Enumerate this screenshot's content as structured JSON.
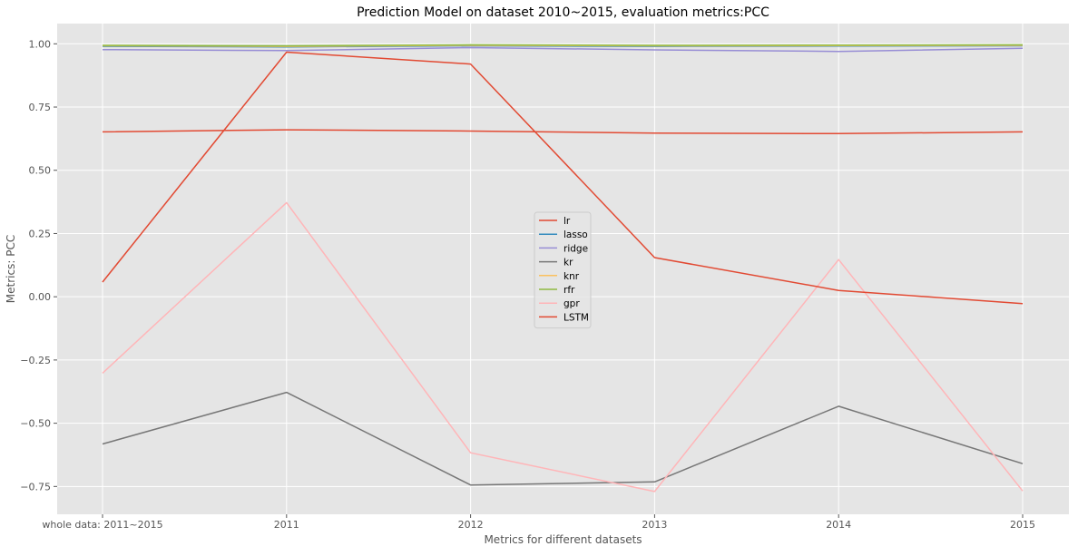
{
  "chart_data": {
    "type": "line",
    "title": "Prediction Model on dataset 2010~2015, evaluation metrics:PCC",
    "xlabel": "Metrics for different datasets",
    "ylabel": "Metrics: PCC",
    "categories": [
      "whole data: 2011~2015",
      "2011",
      "2012",
      "2013",
      "2014",
      "2015"
    ],
    "ylim": [
      -0.86,
      1.08
    ],
    "yticks": [
      -0.75,
      -0.5,
      -0.25,
      0.0,
      0.25,
      0.5,
      0.75,
      1.0
    ],
    "ytick_labels": [
      "−0.75",
      "−0.50",
      "−0.25",
      "0.00",
      "0.25",
      "0.50",
      "0.75",
      "1.00"
    ],
    "grid": true,
    "legend_position": "center",
    "background": "#e5e5e5",
    "series": [
      {
        "name": "lr",
        "color": "#e24a33",
        "values": [
          0.652,
          0.66,
          0.655,
          0.647,
          0.645,
          0.652
        ]
      },
      {
        "name": "lasso",
        "color": "#348abd",
        "values": [
          0.99,
          0.988,
          0.992,
          0.99,
          0.991,
          0.992
        ]
      },
      {
        "name": "ridge",
        "color": "#988ed5",
        "values": [
          0.977,
          0.973,
          0.985,
          0.976,
          0.97,
          0.982
        ]
      },
      {
        "name": "kr",
        "color": "#777777",
        "values": [
          -0.582,
          -0.378,
          -0.744,
          -0.732,
          -0.433,
          -0.66
        ]
      },
      {
        "name": "knr",
        "color": "#fbc15e",
        "values": [
          0.992,
          0.99,
          0.994,
          0.992,
          0.993,
          0.994
        ]
      },
      {
        "name": "rfr",
        "color": "#8eba42",
        "values": [
          0.994,
          0.992,
          0.996,
          0.994,
          0.995,
          0.996
        ]
      },
      {
        "name": "gpr",
        "color": "#ffb5b8",
        "values": [
          -0.302,
          0.372,
          -0.617,
          -0.77,
          0.147,
          -0.768
        ]
      },
      {
        "name": "LSTM",
        "color": "#e24a33",
        "values": [
          0.058,
          0.967,
          0.92,
          0.155,
          0.025,
          -0.027
        ]
      }
    ]
  }
}
